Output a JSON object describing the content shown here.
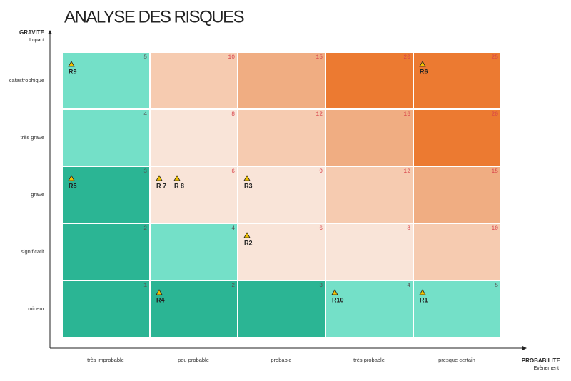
{
  "title": "ANALYSE DES RISQUES",
  "y_axis": {
    "title": "GRAVITE",
    "subtitle": "Impact",
    "labels": [
      "catastrophique",
      "très grave",
      "grave",
      "significatif",
      "mineur"
    ]
  },
  "x_axis": {
    "title": "PROBABILITE",
    "subtitle": "Evènement",
    "labels": [
      "très improbable",
      "peu probable",
      "probable",
      "très probable",
      "presque certain"
    ]
  },
  "matrix": {
    "rows": [
      {
        "cells": [
          {
            "score": "5",
            "color": "#74e0c8",
            "risks": [
              "R9"
            ]
          },
          {
            "score": "10",
            "color": "#f6cbb0",
            "risks": []
          },
          {
            "score": "15",
            "color": "#f0ad82",
            "risks": []
          },
          {
            "score": "20",
            "color": "#ec7a31",
            "risks": []
          },
          {
            "score": "25",
            "color": "#ec7a31",
            "risks": [
              "R6"
            ]
          }
        ]
      },
      {
        "cells": [
          {
            "score": "4",
            "color": "#74e0c8",
            "risks": []
          },
          {
            "score": "8",
            "color": "#f9e4d8",
            "risks": []
          },
          {
            "score": "12",
            "color": "#f6cbb0",
            "risks": []
          },
          {
            "score": "16",
            "color": "#f0ad82",
            "risks": []
          },
          {
            "score": "20",
            "color": "#ec7a31",
            "risks": []
          }
        ]
      },
      {
        "cells": [
          {
            "score": "3",
            "color": "#2bb594",
            "risks": [
              "R5"
            ]
          },
          {
            "score": "6",
            "color": "#f9e4d8",
            "risks": [
              "R 7",
              "R 8"
            ]
          },
          {
            "score": "9",
            "color": "#f9e4d8",
            "risks": [
              "R3"
            ]
          },
          {
            "score": "12",
            "color": "#f6cbb0",
            "risks": []
          },
          {
            "score": "15",
            "color": "#f0ad82",
            "risks": []
          }
        ]
      },
      {
        "cells": [
          {
            "score": "2",
            "color": "#2bb594",
            "risks": []
          },
          {
            "score": "4",
            "color": "#74e0c8",
            "risks": []
          },
          {
            "score": "6",
            "color": "#f9e4d8",
            "risks": [
              "R2"
            ]
          },
          {
            "score": "8",
            "color": "#f9e4d8",
            "risks": []
          },
          {
            "score": "10",
            "color": "#f6cbb0",
            "risks": []
          }
        ]
      },
      {
        "cells": [
          {
            "score": "1",
            "color": "#2bb594",
            "risks": []
          },
          {
            "score": "2",
            "color": "#2bb594",
            "risks": [
              "R4"
            ]
          },
          {
            "score": "3",
            "color": "#2bb594",
            "risks": []
          },
          {
            "score": "4",
            "color": "#74e0c8",
            "risks": [
              "R10"
            ]
          },
          {
            "score": "5",
            "color": "#74e0c8",
            "risks": [
              "R1"
            ]
          }
        ]
      }
    ]
  }
}
